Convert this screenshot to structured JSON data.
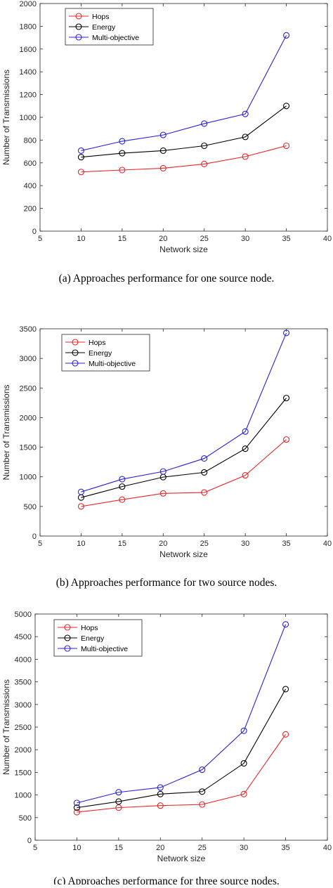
{
  "chart_data": [
    {
      "type": "line",
      "xlabel": "Network size",
      "ylabel": "Number of Transmissions",
      "xlim": [
        5,
        40
      ],
      "ylim": [
        0,
        2000
      ],
      "x_ticks": [
        "5",
        "10",
        "15",
        "20",
        "25",
        "30",
        "35",
        "40"
      ],
      "y_ticks": [
        "0",
        "200",
        "400",
        "600",
        "800",
        "1000",
        "1200",
        "1400",
        "1600",
        "1800",
        "2000"
      ],
      "x": [
        10,
        15,
        20,
        25,
        30,
        35
      ],
      "legend_position": "top-left",
      "series": [
        {
          "name": "Hops",
          "color": "#e8262a",
          "values": [
            520,
            537,
            553,
            590,
            655,
            750
          ]
        },
        {
          "name": "Energy",
          "color": "#000000",
          "values": [
            650,
            685,
            707,
            750,
            828,
            1100
          ]
        },
        {
          "name": "Multi-objective",
          "color": "#2a22d6",
          "values": [
            707,
            790,
            845,
            945,
            1030,
            1720
          ]
        }
      ],
      "caption": "(a) Approaches performance for one source node."
    },
    {
      "type": "line",
      "xlabel": "Network size",
      "ylabel": "Number of Transmissions",
      "xlim": [
        5,
        40
      ],
      "ylim": [
        0,
        3500
      ],
      "x_ticks": [
        "5",
        "10",
        "15",
        "20",
        "25",
        "30",
        "35",
        "40"
      ],
      "y_ticks": [
        "0",
        "500",
        "1000",
        "1500",
        "2000",
        "2500",
        "3000",
        "3500"
      ],
      "x": [
        10,
        15,
        20,
        25,
        30,
        35
      ],
      "legend_position": "top-left",
      "series": [
        {
          "name": "Hops",
          "color": "#e8262a",
          "values": [
            500,
            615,
            720,
            735,
            1025,
            1630
          ]
        },
        {
          "name": "Energy",
          "color": "#000000",
          "values": [
            650,
            835,
            995,
            1075,
            1475,
            2330
          ]
        },
        {
          "name": "Multi-objective",
          "color": "#2a22d6",
          "values": [
            745,
            960,
            1090,
            1310,
            1765,
            3430
          ]
        }
      ],
      "caption": "(b) Approaches performance for two source nodes."
    },
    {
      "type": "line",
      "xlabel": "Network size",
      "ylabel": "Number of Transmissions",
      "xlim": [
        5,
        40
      ],
      "ylim": [
        0,
        5000
      ],
      "x_ticks": [
        "5",
        "10",
        "15",
        "20",
        "25",
        "30",
        "35",
        "40"
      ],
      "y_ticks": [
        "0",
        "500",
        "1000",
        "1500",
        "2000",
        "2500",
        "3000",
        "3500",
        "4000",
        "4500",
        "5000"
      ],
      "x": [
        10,
        15,
        20,
        25,
        30,
        35
      ],
      "legend_position": "top-left",
      "series": [
        {
          "name": "Hops",
          "color": "#e8262a",
          "values": [
            620,
            720,
            765,
            790,
            1020,
            2340
          ]
        },
        {
          "name": "Energy",
          "color": "#000000",
          "values": [
            720,
            855,
            1020,
            1075,
            1700,
            3340
          ]
        },
        {
          "name": "Multi-objective",
          "color": "#2a22d6",
          "values": [
            825,
            1060,
            1165,
            1560,
            2420,
            4770
          ]
        }
      ],
      "caption": "(c) Approaches performance for three source nodes."
    }
  ]
}
